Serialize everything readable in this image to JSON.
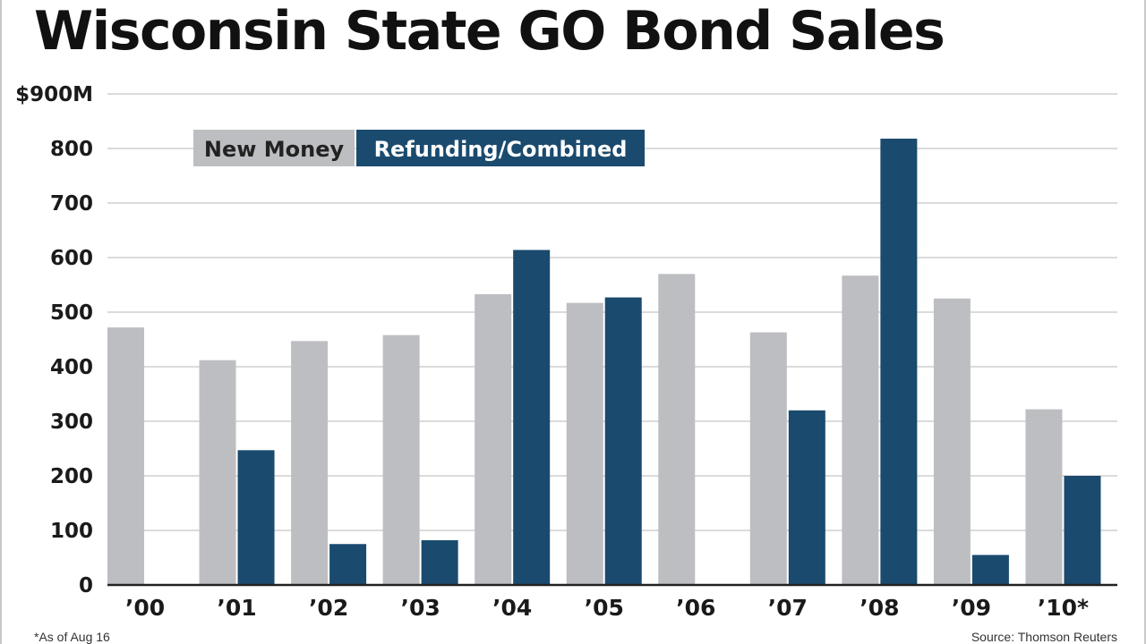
{
  "chart_data": {
    "type": "bar",
    "title": "Wisconsin State GO Bond Sales",
    "categories": [
      "’00",
      "’01",
      "’02",
      "’03",
      "’04",
      "’05",
      "’06",
      "’07",
      "’08",
      "’09",
      "’10*"
    ],
    "series": [
      {
        "name": "New Money",
        "color": "#bdbec2",
        "values": [
          472,
          412,
          447,
          458,
          533,
          517,
          570,
          463,
          567,
          525,
          322
        ]
      },
      {
        "name": "Refunding/Combined",
        "color": "#1a4a6e",
        "values": [
          0,
          247,
          75,
          82,
          614,
          527,
          0,
          320,
          818,
          55,
          200
        ]
      }
    ],
    "y_ticks": [
      0,
      100,
      200,
      300,
      400,
      500,
      600,
      700,
      800,
      900
    ],
    "y_tick_labels": [
      "0",
      "100",
      "200",
      "300",
      "400",
      "500",
      "600",
      "700",
      "800",
      "$900M"
    ],
    "ylim": [
      0,
      900
    ],
    "xlabel": "",
    "ylabel": "",
    "grid": true,
    "legend_position": "top-left"
  },
  "footnote": "*As of Aug 16",
  "source": "Source: Thomson Reuters"
}
